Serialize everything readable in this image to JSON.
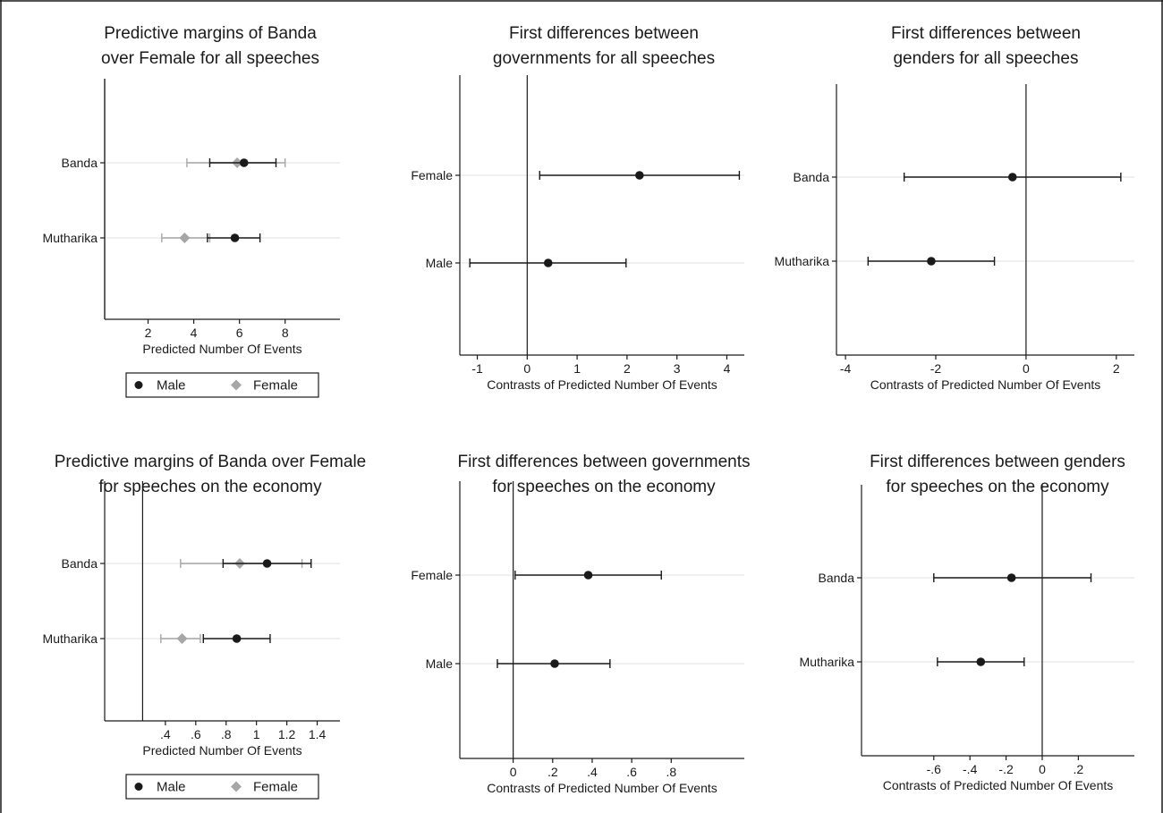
{
  "colors": {
    "male": "#1a1a1a",
    "female": "#a6a6a6",
    "axis": "#1a1a1a",
    "grid": "#e6e6e6"
  },
  "legend": {
    "male_label": "Male",
    "female_label": "Female"
  },
  "chart_data": [
    {
      "type": "scatter",
      "title": [
        "Predictive margins of Banda",
        "over Female for all speeches"
      ],
      "xlabel": "Predicted Number Of Events",
      "xlim": [
        0.1,
        10.4
      ],
      "xticks": [
        2,
        4,
        6,
        8
      ],
      "tick_labels": [
        "2",
        "4",
        "6",
        "8"
      ],
      "ref_line": 0.1,
      "categories": [
        "Banda",
        "Mutharika"
      ],
      "series": [
        {
          "name": "Male",
          "marker": "circle",
          "values": [
            6.2,
            5.8
          ],
          "ci_low": [
            4.7,
            4.6
          ],
          "ci_high": [
            7.6,
            6.9
          ]
        },
        {
          "name": "Female",
          "marker": "diamond",
          "values": [
            5.9,
            3.6
          ],
          "ci_low": [
            3.7,
            2.6
          ],
          "ci_high": [
            8.0,
            4.7
          ]
        }
      ],
      "legend": "bottom"
    },
    {
      "type": "scatter",
      "title": [
        "First differences between",
        "governments for all speeches"
      ],
      "xlabel": "Contrasts of Predicted Number Of Events",
      "xlim": [
        -1.35,
        4.35
      ],
      "xticks": [
        -1,
        0,
        1,
        2,
        3,
        4
      ],
      "tick_labels": [
        "-1",
        "0",
        "1",
        "2",
        "3",
        "4"
      ],
      "ref_line": 0,
      "categories": [
        "Female",
        "Male"
      ],
      "series": [
        {
          "name": "",
          "marker": "circle",
          "values": [
            2.25,
            0.42
          ],
          "ci_low": [
            0.25,
            -1.15
          ],
          "ci_high": [
            4.25,
            1.98
          ]
        }
      ]
    },
    {
      "type": "scatter",
      "title": [
        "First differences between",
        "genders for all speeches"
      ],
      "xlabel": "Contrasts of Predicted Number Of Events",
      "xlim": [
        -4.2,
        2.4
      ],
      "xticks": [
        -4,
        -2,
        0,
        2
      ],
      "tick_labels": [
        "-4",
        "-2",
        "0",
        "2"
      ],
      "ref_line": 0,
      "categories": [
        "Banda",
        "Mutharika"
      ],
      "series": [
        {
          "name": "",
          "marker": "circle",
          "values": [
            -0.3,
            -2.1
          ],
          "ci_low": [
            -2.7,
            -3.5
          ],
          "ci_high": [
            2.1,
            -0.7
          ]
        }
      ]
    },
    {
      "type": "scatter",
      "title": [
        "Predictive margins of Banda over Female",
        "for speeches on the economy"
      ],
      "xlabel": "Predicted Number Of Events",
      "xlim": [
        0.0,
        1.55
      ],
      "xticks": [
        0.4,
        0.6,
        0.8,
        1.0,
        1.2,
        1.4
      ],
      "tick_labels": [
        ".4",
        ".6",
        ".8",
        "1",
        "1.2",
        "1.4"
      ],
      "ref_line": 0.25,
      "categories": [
        "Banda",
        "Mutharika"
      ],
      "series": [
        {
          "name": "Male",
          "marker": "circle",
          "values": [
            1.07,
            0.87
          ],
          "ci_low": [
            0.78,
            0.65
          ],
          "ci_high": [
            1.36,
            1.09
          ]
        },
        {
          "name": "Female",
          "marker": "diamond",
          "values": [
            0.89,
            0.51
          ],
          "ci_low": [
            0.5,
            0.37
          ],
          "ci_high": [
            1.3,
            0.63
          ]
        }
      ],
      "legend": "bottom"
    },
    {
      "type": "scatter",
      "title": [
        "First differences between governments",
        "for speeches on the economy"
      ],
      "xlabel": "Contrasts of Predicted Number Of Events",
      "xlim": [
        -0.27,
        1.17
      ],
      "xticks": [
        0,
        0.2,
        0.4,
        0.6,
        0.8
      ],
      "tick_labels": [
        "0",
        ".2",
        ".4",
        ".6",
        ".8"
      ],
      "ref_line": 0,
      "categories": [
        "Female",
        "Male"
      ],
      "series": [
        {
          "name": "",
          "marker": "circle",
          "values": [
            0.38,
            0.21
          ],
          "ci_low": [
            0.01,
            -0.08
          ],
          "ci_high": [
            0.75,
            0.49
          ]
        }
      ]
    },
    {
      "type": "scatter",
      "title": [
        "First differences between genders",
        "for speeches on the economy"
      ],
      "xlabel": "Contrasts of Predicted Number Of Events",
      "xlim": [
        -1.0,
        0.51
      ],
      "xticks": [
        -0.6,
        -0.4,
        -0.2,
        0,
        0.2
      ],
      "tick_labels": [
        "-.6",
        "-.4",
        "-.2",
        "0",
        ".2"
      ],
      "ref_line": 0,
      "categories": [
        "Banda",
        "Mutharika"
      ],
      "series": [
        {
          "name": "",
          "marker": "circle",
          "values": [
            -0.17,
            -0.34
          ],
          "ci_low": [
            -0.6,
            -0.58
          ],
          "ci_high": [
            0.27,
            -0.1
          ]
        }
      ]
    }
  ]
}
